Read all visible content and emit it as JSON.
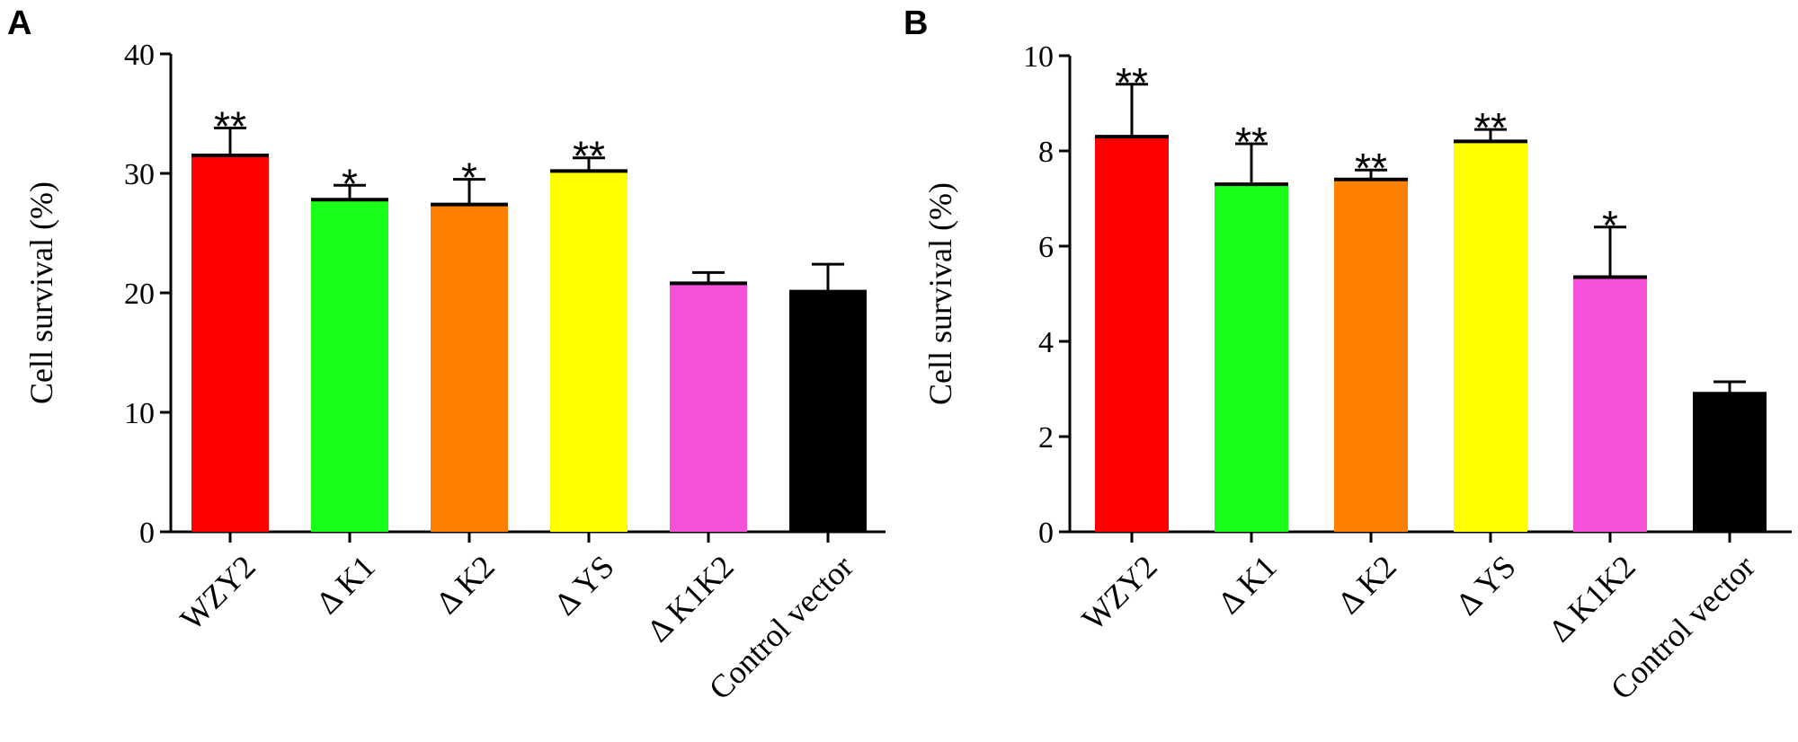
{
  "chart_data": [
    {
      "panel": "A",
      "type": "bar",
      "ylabel": "Cell survival (%)",
      "ylim": [
        0,
        40
      ],
      "yticks": [
        0,
        10,
        20,
        30,
        40
      ],
      "categories": [
        "WZY2",
        "Δ K1",
        "Δ K2",
        "Δ YS",
        "Δ K1K2",
        "Control vector"
      ],
      "values": [
        31.5,
        27.8,
        27.4,
        30.2,
        20.8,
        20.1
      ],
      "errors": [
        2.3,
        1.2,
        2.1,
        1.1,
        0.9,
        2.3
      ],
      "significance": [
        "**",
        "*",
        "*",
        "**",
        "",
        ""
      ],
      "colors": [
        "#ff0000",
        "#19ff19",
        "#ff8000",
        "#ffff00",
        "#f750d8",
        "#000000"
      ]
    },
    {
      "panel": "B",
      "type": "bar",
      "ylabel": "Cell survival (%)",
      "ylim": [
        0,
        10
      ],
      "yticks": [
        0,
        2,
        4,
        6,
        8,
        10
      ],
      "categories": [
        "WZY2",
        "Δ K1",
        "Δ K2",
        "Δ YS",
        "Δ K1K2",
        "Control vector"
      ],
      "values": [
        8.3,
        7.3,
        7.4,
        8.2,
        5.35,
        2.9
      ],
      "errors": [
        1.1,
        0.85,
        0.2,
        0.25,
        1.05,
        0.25
      ],
      "significance": [
        "**",
        "**",
        "**",
        "**",
        "*",
        ""
      ],
      "colors": [
        "#ff0000",
        "#19ff19",
        "#ff8000",
        "#ffff00",
        "#f750d8",
        "#000000"
      ]
    }
  ]
}
